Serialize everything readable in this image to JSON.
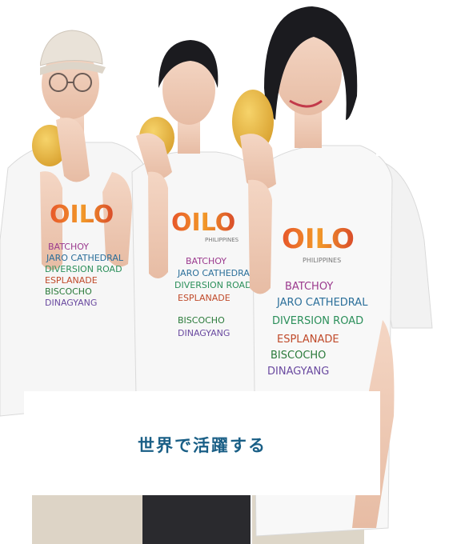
{
  "card": {
    "title": "世界で活躍する"
  },
  "shirt": {
    "lines": [
      "ILOILO",
      "PHILIPPINES",
      "BATCHOY",
      "JARO CATHEDRAL",
      "DIVERSION ROAD",
      "ESPLANADE",
      "BISCOCHO",
      "DINAGYANG"
    ]
  },
  "colors": {
    "accent": "#1a5f86",
    "mango": "#e7b640",
    "shirt": "#f7f7f7"
  }
}
